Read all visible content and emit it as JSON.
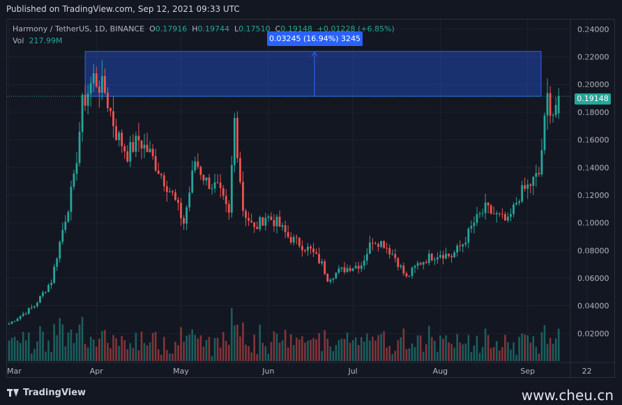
{
  "header": {
    "published": "Published on TradingView.com, Sep 12, 2021 09:33 UTC"
  },
  "legend": {
    "symbol": "Harmony / TetherUS, 1D, BINANCE",
    "open_label": "O",
    "open": "0.17916",
    "high_label": "H",
    "high": "0.19744",
    "low_label": "L",
    "low": "0.17510",
    "close_label": "C",
    "close": "0.19148",
    "change": "+0.01228 (+6.85%)",
    "vol_label": "Vol",
    "vol": "217.99M"
  },
  "measure": {
    "label": "0.03245 (16.94%) 3245",
    "from": 0.19148,
    "to": 0.22393
  },
  "price_tag": "0.19148",
  "footer": {
    "brand": "TradingView",
    "watermark": "www.cheu.cn"
  },
  "colors": {
    "up": "#26a69a",
    "down": "#ef5350",
    "measure": "#2962ff",
    "bg": "#131722"
  },
  "chart_data": {
    "type": "candlestick",
    "y_ticks": [
      "0.24000",
      "0.22000",
      "0.20000",
      "0.18000",
      "0.16000",
      "0.14000",
      "0.12000",
      "0.10000",
      "0.08000",
      "0.06000",
      "0.04000",
      "0.02000"
    ],
    "ylim": [
      0,
      0.247
    ],
    "x_ticks": [
      "Mar",
      "Apr",
      "May",
      "Jun",
      "Jul",
      "Aug",
      "Sep",
      "22"
    ],
    "y_axis_position": "right",
    "grid": true,
    "anchors": [
      [
        "Mar 01",
        0.027
      ],
      [
        "Mar 10",
        0.04
      ],
      [
        "Mar 16",
        0.058
      ],
      [
        "Mar 20",
        0.095
      ],
      [
        "Mar 24",
        0.13
      ],
      [
        "Mar 27",
        0.185
      ],
      [
        "Mar 31",
        0.205
      ],
      [
        "Apr 04",
        0.195
      ],
      [
        "Apr 08",
        0.165
      ],
      [
        "Apr 12",
        0.15
      ],
      [
        "Apr 16",
        0.16
      ],
      [
        "Apr 20",
        0.15
      ],
      [
        "Apr 24",
        0.135
      ],
      [
        "Apr 28",
        0.12
      ],
      [
        "May 02",
        0.1
      ],
      [
        "May 06",
        0.145
      ],
      [
        "May 10",
        0.13
      ],
      [
        "May 14",
        0.125
      ],
      [
        "May 18",
        0.105
      ],
      [
        "May 20",
        0.175
      ],
      [
        "May 23",
        0.11
      ],
      [
        "May 27",
        0.095
      ],
      [
        "May 31",
        0.105
      ],
      [
        "Jun 04",
        0.1
      ],
      [
        "Jun 08",
        0.09
      ],
      [
        "Jun 12",
        0.085
      ],
      [
        "Jun 16",
        0.08
      ],
      [
        "Jun 20",
        0.07
      ],
      [
        "Jun 22",
        0.06
      ],
      [
        "Jun 26",
        0.065
      ],
      [
        "Jun 30",
        0.068
      ],
      [
        "Jul 04",
        0.07
      ],
      [
        "Jul 08",
        0.088
      ],
      [
        "Jul 12",
        0.085
      ],
      [
        "Jul 16",
        0.075
      ],
      [
        "Jul 20",
        0.06
      ],
      [
        "Jul 24",
        0.07
      ],
      [
        "Jul 28",
        0.075
      ],
      [
        "Aug 01",
        0.078
      ],
      [
        "Aug 05",
        0.076
      ],
      [
        "Aug 09",
        0.085
      ],
      [
        "Aug 13",
        0.1
      ],
      [
        "Aug 17",
        0.11
      ],
      [
        "Aug 21",
        0.105
      ],
      [
        "Aug 25",
        0.1
      ],
      [
        "Aug 29",
        0.12
      ],
      [
        "Sep 02",
        0.128
      ],
      [
        "Sep 05",
        0.135
      ],
      [
        "Sep 08",
        0.19
      ],
      [
        "Sep 10",
        0.18
      ],
      [
        "Sep 12",
        0.19148
      ]
    ],
    "last": {
      "open": 0.17916,
      "high": 0.19744,
      "low": 0.1751,
      "close": 0.19148,
      "volume": "217.99M"
    }
  }
}
